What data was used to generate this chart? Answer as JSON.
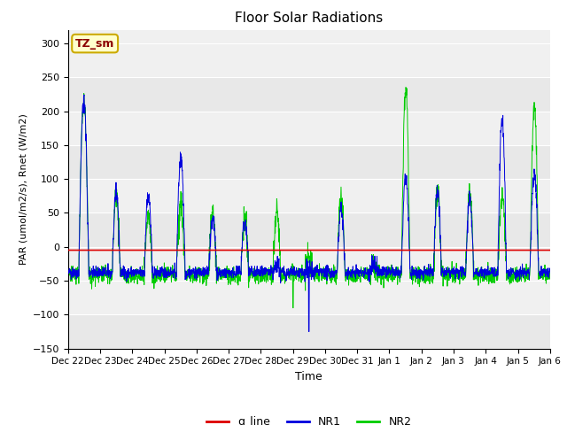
{
  "title": "Floor Solar Radiations",
  "xlabel": "Time",
  "ylabel": "PAR (umol/m2/s), Rnet (W/m2)",
  "ylim": [
    -150,
    320
  ],
  "yticks": [
    -150,
    -100,
    -50,
    0,
    50,
    100,
    150,
    200,
    250,
    300
  ],
  "bg_color": "#ffffff",
  "plot_bg_color": "#f0f0f0",
  "legend_label": "TZ_sm",
  "legend_box_color": "#ffffcc",
  "legend_box_edge": "#ccaa00",
  "line_colors": {
    "q_line": "#dd0000",
    "NR1": "#0000dd",
    "NR2": "#00cc00"
  },
  "xtick_labels": [
    "Dec 22",
    "Dec 23",
    "Dec 24",
    "Dec 25",
    "Dec 26",
    "Dec 27",
    "Dec 28",
    "Dec 29",
    "Dec 30",
    "Dec 31",
    "Jan 1",
    "Jan 2",
    "Jan 3",
    "Jan 4",
    "Jan 5",
    "Jan 6"
  ],
  "n_points": 2160,
  "seed": 42,
  "days": 15
}
